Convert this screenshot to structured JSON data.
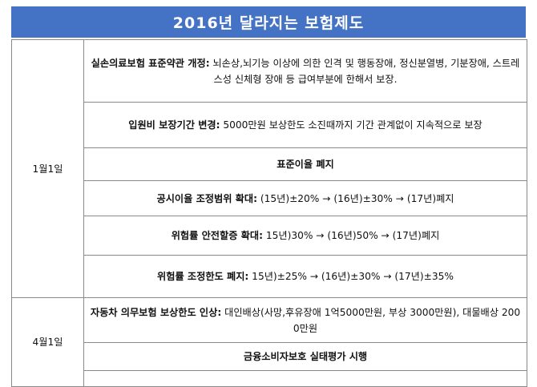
{
  "title": "2016년 달라지는 보험제도",
  "groups": [
    {
      "date": "1월1일",
      "items": [
        {
          "head": "실손의료보험 표준약관 개정:",
          "body": " 뇌손상,뇌기능 이상에 의한 인격 및 행동장애, 정신분열병, 기분장애, 스트레스성 신체형 장애 등 급여부분에 한해서 보장."
        },
        {
          "head": "입원비 보장기간 변경:",
          "body": " 5000만원 보상한도 소진때까지 기간 관계없이 지속적으로 보장"
        },
        {
          "head": "표준이율 폐지",
          "body": ""
        },
        {
          "head": "공시이율 조정범위 확대:",
          "body": " (15년)±20% → (16년)±30% → (17년)폐지"
        },
        {
          "head": "위험률 안전할증 확대:",
          "body": " 15년)30% → (16년)50% → (17년)폐지"
        },
        {
          "head": "위험률 조정한도 폐지:",
          "body": " 15년)±25% → (16년)±30% → (17년)±35%"
        }
      ]
    },
    {
      "date": "4월1일",
      "items": [
        {
          "head": "자동차 의무보험 보상한도 인상:",
          "body": " 대인배상(사망,후유장애 1억5000만원, 부상 3000만원), 대물배상 2000만원"
        },
        {
          "head": "금융소비자보호 실태평가 시행",
          "body": ""
        }
      ]
    }
  ]
}
